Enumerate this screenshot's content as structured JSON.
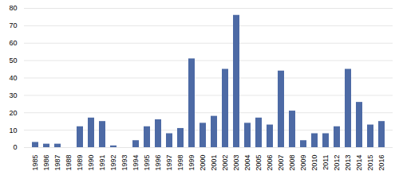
{
  "chart_data": {
    "type": "bar",
    "categories": [
      "1985",
      "1986",
      "1987",
      "1988",
      "1989",
      "1990",
      "1991",
      "1992",
      "1993",
      "1994",
      "1995",
      "1996",
      "1997",
      "1998",
      "1999",
      "2000",
      "2001",
      "2002",
      "2003",
      "2004",
      "2005",
      "2006",
      "2007",
      "2008",
      "2009",
      "2010",
      "2011",
      "2012",
      "2013",
      "2014",
      "2015",
      "2016"
    ],
    "values": [
      3,
      2,
      2,
      0,
      12,
      17,
      15,
      1,
      0,
      4,
      12,
      16,
      8,
      11,
      51,
      14,
      18,
      45,
      76,
      14,
      17,
      13,
      44,
      21,
      4,
      8,
      8,
      12,
      45,
      26,
      13,
      15
    ],
    "color": "#4d6aa5",
    "ylim": [
      0,
      80
    ],
    "yticks": [
      0,
      10,
      20,
      30,
      40,
      50,
      60,
      70,
      80
    ],
    "grid": true
  }
}
